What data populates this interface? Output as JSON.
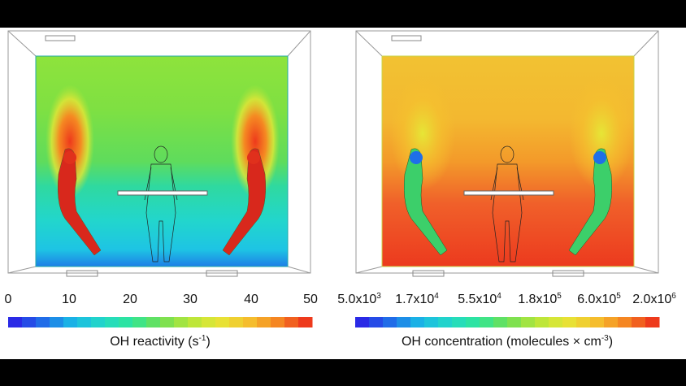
{
  "left_panel": {
    "ticks": [
      "0",
      "10",
      "20",
      "30",
      "40",
      "50"
    ],
    "caption_main": "OH reactivity (s",
    "caption_sup": "-1",
    "caption_end": ")",
    "colormap": [
      "#2a2ae6",
      "#1f6fe8",
      "#1ab8e6",
      "#22d8c8",
      "#2ee69a",
      "#6ee055",
      "#b5e63a",
      "#e6e636",
      "#f5c22e",
      "#f58a22",
      "#ee3a1c"
    ]
  },
  "right_panel": {
    "ticks": [
      {
        "base": "5.0x10",
        "exp": "3"
      },
      {
        "base": "1.7x10",
        "exp": "4"
      },
      {
        "base": "5.5x10",
        "exp": "4"
      },
      {
        "base": "1.8x10",
        "exp": "5"
      },
      {
        "base": "6.0x10",
        "exp": "5"
      },
      {
        "base": "2.0x10",
        "exp": "6"
      }
    ],
    "caption_main": "OH concentration (molecules × cm",
    "caption_sup": "-3",
    "caption_end": ")",
    "colormap": [
      "#2a2ae6",
      "#1f6fe8",
      "#1ab8e6",
      "#22d8c8",
      "#2ee69a",
      "#6ee055",
      "#b5e63a",
      "#e6e636",
      "#f5c22e",
      "#f58a22",
      "#ee3a1c"
    ]
  }
}
